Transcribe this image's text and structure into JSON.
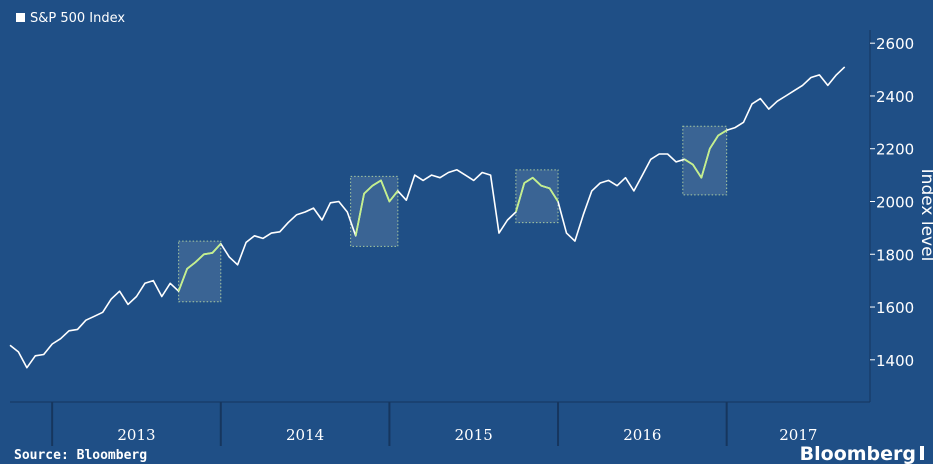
{
  "chart_data": {
    "type": "line",
    "title": "S&P 500 Index",
    "y_label": "Index level",
    "source": "Source: Bloomberg",
    "brand": "Bloomberg",
    "categories": [
      "2013",
      "2014",
      "2015",
      "2016",
      "2017"
    ],
    "xticks": [
      2013,
      2014,
      2015,
      2016,
      2017
    ],
    "xlim": [
      2012.75,
      2017.85
    ],
    "ylim": [
      1240,
      2650
    ],
    "yticks": [
      1400,
      1600,
      1800,
      2000,
      2200,
      2400,
      2600
    ],
    "y_axis_side": "right",
    "grid": false,
    "x": [
      2012.75,
      2012.8,
      2012.85,
      2012.9,
      2012.95,
      2013.0,
      2013.05,
      2013.1,
      2013.15,
      2013.2,
      2013.25,
      2013.3,
      2013.35,
      2013.4,
      2013.45,
      2013.5,
      2013.55,
      2013.6,
      2013.65,
      2013.7,
      2013.75,
      2013.8,
      2013.85,
      2013.9,
      2013.95,
      2014.0,
      2014.05,
      2014.1,
      2014.15,
      2014.2,
      2014.25,
      2014.3,
      2014.35,
      2014.4,
      2014.45,
      2014.5,
      2014.55,
      2014.6,
      2014.65,
      2014.7,
      2014.75,
      2014.8,
      2014.85,
      2014.9,
      2014.95,
      2015.0,
      2015.05,
      2015.1,
      2015.15,
      2015.2,
      2015.25,
      2015.3,
      2015.35,
      2015.4,
      2015.45,
      2015.5,
      2015.55,
      2015.6,
      2015.65,
      2015.7,
      2015.75,
      2015.8,
      2015.85,
      2015.9,
      2015.95,
      2016.0,
      2016.05,
      2016.1,
      2016.15,
      2016.2,
      2016.25,
      2016.3,
      2016.35,
      2016.4,
      2016.45,
      2016.5,
      2016.55,
      2016.6,
      2016.65,
      2016.7,
      2016.75,
      2016.8,
      2016.85,
      2016.9,
      2016.95,
      2017.0,
      2017.05,
      2017.1,
      2017.15,
      2017.2,
      2017.25,
      2017.3,
      2017.35,
      2017.4,
      2017.45,
      2017.5,
      2017.55,
      2017.6,
      2017.65,
      2017.7
    ],
    "series": [
      {
        "name": "S&P 500 Index",
        "color": "#ffffff",
        "values": [
          1455,
          1430,
          1370,
          1415,
          1420,
          1460,
          1480,
          1510,
          1515,
          1550,
          1565,
          1580,
          1630,
          1660,
          1610,
          1640,
          1690,
          1700,
          1640,
          1690,
          1660,
          1745,
          1770,
          1800,
          1805,
          1840,
          1790,
          1760,
          1845,
          1870,
          1860,
          1880,
          1885,
          1920,
          1950,
          1960,
          1975,
          1930,
          1995,
          2000,
          1960,
          1870,
          2030,
          2060,
          2080,
          2000,
          2040,
          2005,
          2100,
          2080,
          2100,
          2090,
          2110,
          2120,
          2100,
          2080,
          2110,
          2100,
          1880,
          1930,
          1960,
          2070,
          2090,
          2060,
          2050,
          2000,
          1880,
          1850,
          1950,
          2040,
          2070,
          2080,
          2060,
          2090,
          2040,
          2100,
          2160,
          2180,
          2180,
          2150,
          2160,
          2140,
          2090,
          2200,
          2250,
          2270,
          2280,
          2300,
          2370,
          2390,
          2350,
          2380,
          2400,
          2420,
          2440,
          2470,
          2480,
          2440,
          2480,
          2510
        ]
      }
    ],
    "highlight_color": "#c4f08c",
    "highlights": [
      {
        "x": [
          2013.75,
          2014.0
        ],
        "y": [
          1620,
          1850
        ]
      },
      {
        "x": [
          2014.77,
          2015.05
        ],
        "y": [
          1830,
          2095
        ]
      },
      {
        "x": [
          2015.75,
          2016.0
        ],
        "y": [
          1920,
          2120
        ]
      },
      {
        "x": [
          2016.74,
          2017.0
        ],
        "y": [
          2025,
          2285
        ]
      }
    ]
  }
}
